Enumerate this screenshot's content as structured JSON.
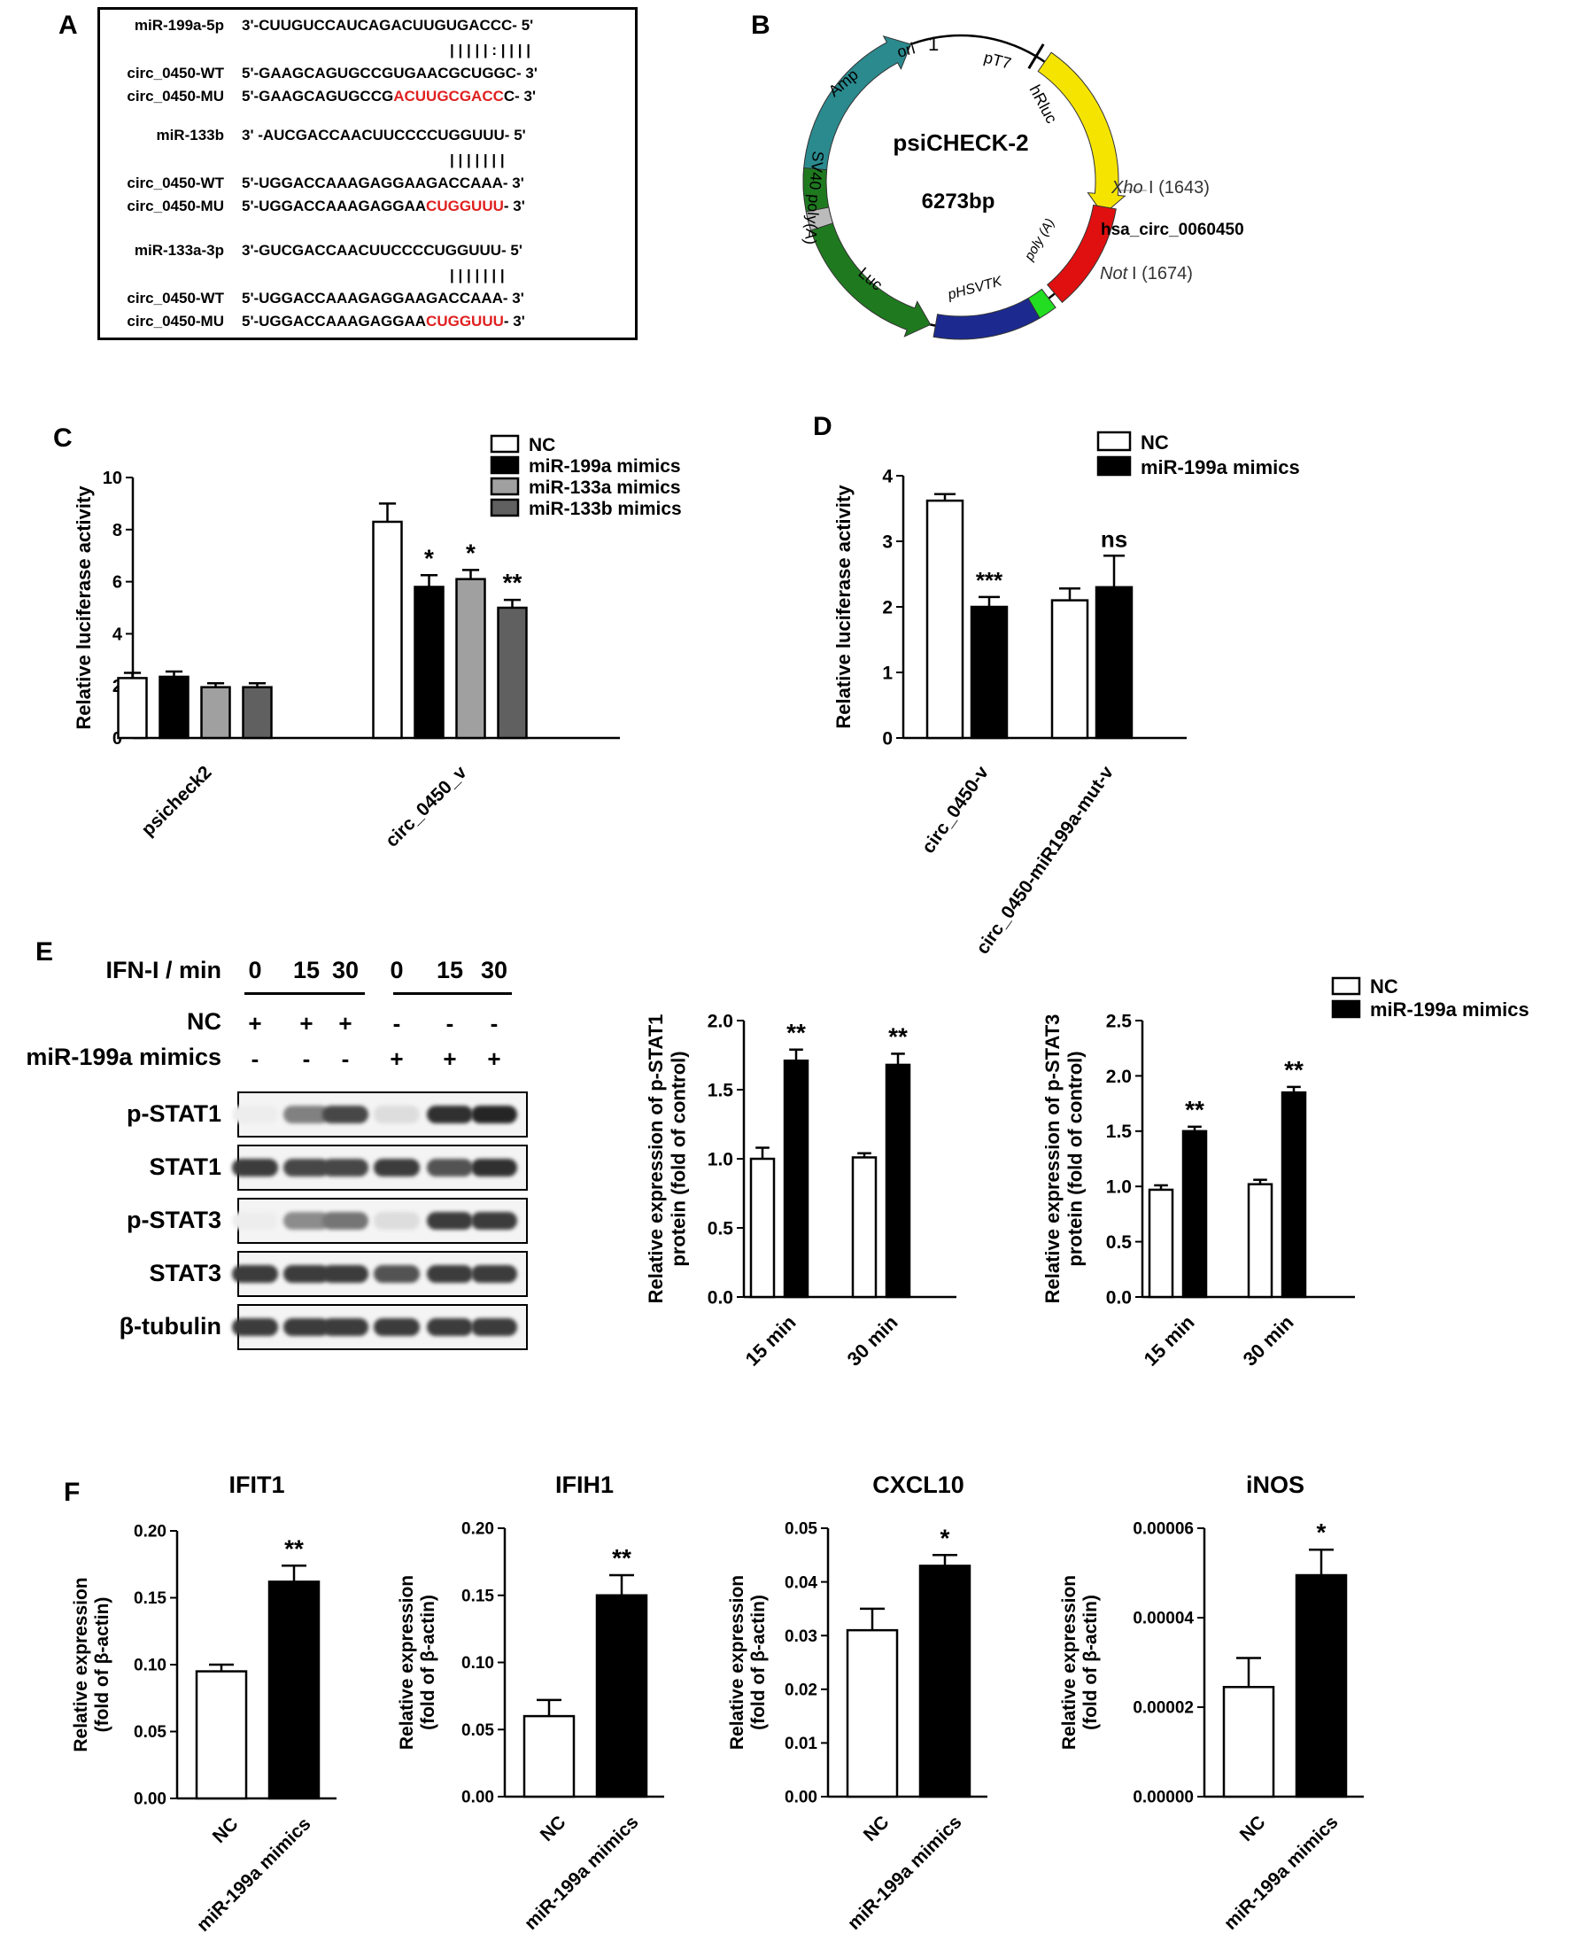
{
  "panels": {
    "A": "A",
    "B": "B",
    "C": "C",
    "D": "D",
    "E": "E",
    "F": "F"
  },
  "panelA": {
    "rows": [
      {
        "label": "miR-199a-5p",
        "seq": "3'-CUUGUCCAUCAGACUUGUGACCC- 5'",
        "red": ""
      },
      {
        "label": "",
        "seq": "| | | | | : | | | |",
        "red": ""
      },
      {
        "label": "circ_0450-WT",
        "seq": "5'-GAAGCAGUGCCGUGAACGCUGGC- 3'",
        "red": ""
      },
      {
        "label": "circ_0450-MU",
        "seq": "5'-GAAGCAGUGCCG",
        "red": "ACUUGCGACC",
        "tail": "C- 3'"
      },
      {
        "label": "miR-133b",
        "seq": "3' -AUCGACCAACUUCCCCUGGUUU- 5'",
        "red": ""
      },
      {
        "label": "",
        "seq": "| | | | | | |",
        "red": ""
      },
      {
        "label": "circ_0450-WT",
        "seq": "5'-UGGACCAAAGAGGAAGACCAAA- 3'",
        "red": ""
      },
      {
        "label": "circ_0450-MU",
        "seq": "5'-UGGACCAAAGAGGAA",
        "red": "CUGGUUU",
        "tail": "- 3'"
      },
      {
        "label": "miR-133a-3p",
        "seq": "3'-GUCGACCAACUUCCCCUGGUUU- 5'",
        "red": ""
      },
      {
        "label": "",
        "seq": "| | | | | | |",
        "red": ""
      },
      {
        "label": "circ_0450-WT",
        "seq": "5'-UGGACCAAAGAGGAAGACCAAA- 3'",
        "red": ""
      },
      {
        "label": "circ_0450-MU",
        "seq": "5'-UGGACCAAAGAGGAA",
        "red": "CUGGUUU",
        "tail": "- 3'"
      }
    ]
  },
  "panelB": {
    "name": "psiCHECK-2",
    "size": "6273bp",
    "labels": {
      "ori": "ori",
      "one": "1",
      "pT7": "pT7",
      "hRluc": "hRluc",
      "amp": "Amp",
      "sv40": "SV40 poly(A)",
      "luc": "Luc",
      "phsvtk": "pHSVTK",
      "polyA": "poly (A)",
      "xho": "Xho",
      "xho_pos": "I (1643)",
      "insert": "hsa_circ_0060450",
      "not": "Not",
      "not_pos": "I (1674)"
    },
    "colors": {
      "amp": "#2b8a8e",
      "hRluc": "#f5e400",
      "insert": "#e01010",
      "green_box": "#22dd22",
      "phsvtk": "#1c2a90",
      "luc": "#1f7a1f",
      "sv40": "#bbbbbb"
    }
  },
  "chart_data": [
    {
      "id": "C",
      "type": "bar",
      "ylabel": "Relative luciferase activity",
      "ylim": [
        0,
        10
      ],
      "yticks": [
        "0",
        "2",
        "4",
        "6",
        "8",
        "10"
      ],
      "categories": [
        "psicheck2",
        "circ_0450_v"
      ],
      "series": [
        {
          "name": "NC",
          "color": "#ffffff",
          "values": [
            2.3,
            8.3
          ],
          "errors": [
            0.2,
            0.7
          ]
        },
        {
          "name": "miR-199a mimics",
          "color": "#000000",
          "values": [
            2.35,
            5.8
          ],
          "errors": [
            0.2,
            0.45
          ]
        },
        {
          "name": "miR-133a mimics",
          "color": "#a0a0a0",
          "values": [
            1.95,
            6.1
          ],
          "errors": [
            0.15,
            0.35
          ]
        },
        {
          "name": "miR-133b mimics",
          "color": "#606060",
          "values": [
            1.95,
            5.0
          ],
          "errors": [
            0.15,
            0.3
          ]
        }
      ],
      "annotations": [
        [
          "",
          "",
          "",
          ""
        ],
        [
          "",
          "*",
          "*",
          "**"
        ]
      ],
      "legend": "top-right"
    },
    {
      "id": "D",
      "type": "bar",
      "ylabel": "Relative luciferase activity",
      "ylim": [
        0,
        4
      ],
      "yticks": [
        "0",
        "1",
        "2",
        "3",
        "4"
      ],
      "categories": [
        "circ_0450-v",
        "circ_0450-miR199a-mut-v"
      ],
      "series": [
        {
          "name": "NC",
          "color": "#ffffff",
          "values": [
            3.62,
            2.1
          ],
          "errors": [
            0.1,
            0.18
          ]
        },
        {
          "name": "miR-199a mimics",
          "color": "#000000",
          "values": [
            2.0,
            2.3
          ],
          "errors": [
            0.15,
            0.48
          ]
        }
      ],
      "annotations": [
        [
          "",
          "***"
        ],
        [
          "",
          "ns"
        ]
      ],
      "legend": "top"
    },
    {
      "id": "E1",
      "type": "bar",
      "ylabel": "Relative expression of p-STAT1 protein (fold of control)",
      "ylim": [
        0,
        2
      ],
      "yticks": [
        "0.0",
        "0.5",
        "1.0",
        "1.5",
        "2.0"
      ],
      "categories": [
        "15 min",
        "30 min"
      ],
      "series": [
        {
          "name": "NC",
          "color": "#ffffff",
          "values": [
            1.0,
            1.01
          ],
          "errors": [
            0.08,
            0.03
          ]
        },
        {
          "name": "miR-199a mimics",
          "color": "#000000",
          "values": [
            1.71,
            1.68
          ],
          "errors": [
            0.08,
            0.08
          ]
        }
      ],
      "annotations": [
        [
          "",
          "**"
        ],
        [
          "",
          "**"
        ]
      ]
    },
    {
      "id": "E2",
      "type": "bar",
      "ylabel": "Relative expression of p-STAT3 protein (fold of control)",
      "ylim": [
        0,
        2.5
      ],
      "yticks": [
        "0.0",
        "0.5",
        "1.0",
        "1.5",
        "2.0",
        "2.5"
      ],
      "categories": [
        "15 min",
        "30 min"
      ],
      "series": [
        {
          "name": "NC",
          "color": "#ffffff",
          "values": [
            0.97,
            1.02
          ],
          "errors": [
            0.04,
            0.04
          ]
        },
        {
          "name": "miR-199a mimics",
          "color": "#000000",
          "values": [
            1.5,
            1.85
          ],
          "errors": [
            0.04,
            0.05
          ]
        }
      ],
      "annotations": [
        [
          "",
          "**"
        ],
        [
          "",
          "**"
        ]
      ],
      "legend": "top-right"
    },
    {
      "id": "F1",
      "type": "bar",
      "title": "IFIT1",
      "ylabel": "Relative expression (fold of β-actin)",
      "ylim": [
        0,
        0.2
      ],
      "yticks": [
        "0.00",
        "0.05",
        "0.10",
        "0.15",
        "0.20"
      ],
      "categories": [
        "NC",
        "miR-199a mimics"
      ],
      "values": [
        0.095,
        0.162
      ],
      "errors": [
        0.005,
        0.012
      ],
      "colors": [
        "#ffffff",
        "#000000"
      ],
      "annotations": [
        "",
        "**"
      ]
    },
    {
      "id": "F2",
      "type": "bar",
      "title": "IFIH1",
      "ylabel": "Relative expression (fold of β-actin)",
      "ylim": [
        0,
        0.2
      ],
      "yticks": [
        "0.00",
        "0.05",
        "0.10",
        "0.15",
        "0.20"
      ],
      "categories": [
        "NC",
        "miR-199a mimics"
      ],
      "values": [
        0.06,
        0.15
      ],
      "errors": [
        0.012,
        0.015
      ],
      "colors": [
        "#ffffff",
        "#000000"
      ],
      "annotations": [
        "",
        "**"
      ]
    },
    {
      "id": "F3",
      "type": "bar",
      "title": "CXCL10",
      "ylabel": "Relative expression (fold of β-actin)",
      "ylim": [
        0,
        0.05
      ],
      "yticks": [
        "0.00",
        "0.01",
        "0.02",
        "0.03",
        "0.04",
        "0.05"
      ],
      "categories": [
        "NC",
        "miR-199a mimics"
      ],
      "values": [
        0.031,
        0.043
      ],
      "errors": [
        0.004,
        0.002
      ],
      "colors": [
        "#ffffff",
        "#000000"
      ],
      "annotations": [
        "",
        "*"
      ]
    },
    {
      "id": "F4",
      "type": "bar",
      "title": "iNOS",
      "ylabel": "Relative expression (fold of β-actin)",
      "ylim": [
        0,
        6e-05
      ],
      "yticks": [
        "0.00000",
        "0.00002",
        "0.00004",
        "0.00006"
      ],
      "categories": [
        "NC",
        "miR-199a mimics"
      ],
      "values": [
        2.45e-05,
        4.95e-05
      ],
      "errors": [
        6.5e-06,
        5.7e-06
      ],
      "colors": [
        "#ffffff",
        "#000000"
      ],
      "annotations": [
        "",
        "*"
      ]
    }
  ],
  "blot": {
    "ifn_label": "IFN-I / min",
    "times": [
      "0",
      "15",
      "30",
      "0",
      "15",
      "30"
    ],
    "nc_label": "NC",
    "nc_signs": [
      "+",
      "+",
      "+",
      "-",
      "-",
      "-"
    ],
    "mimic_label": "miR-199a mimics",
    "mimic_signs": [
      "-",
      "-",
      "-",
      "+",
      "+",
      "+"
    ],
    "rows": [
      {
        "label": "p-STAT1",
        "intensity": [
          0.08,
          0.55,
          0.8,
          0.15,
          0.9,
          0.95
        ]
      },
      {
        "label": "STAT1",
        "intensity": [
          0.85,
          0.8,
          0.8,
          0.85,
          0.75,
          0.9
        ]
      },
      {
        "label": "p-STAT3",
        "intensity": [
          0.08,
          0.5,
          0.6,
          0.15,
          0.85,
          0.85
        ]
      },
      {
        "label": "STAT3",
        "intensity": [
          0.85,
          0.85,
          0.85,
          0.75,
          0.85,
          0.85
        ]
      },
      {
        "label": "β-tubulin",
        "intensity": [
          0.85,
          0.85,
          0.85,
          0.85,
          0.85,
          0.85
        ]
      }
    ]
  }
}
